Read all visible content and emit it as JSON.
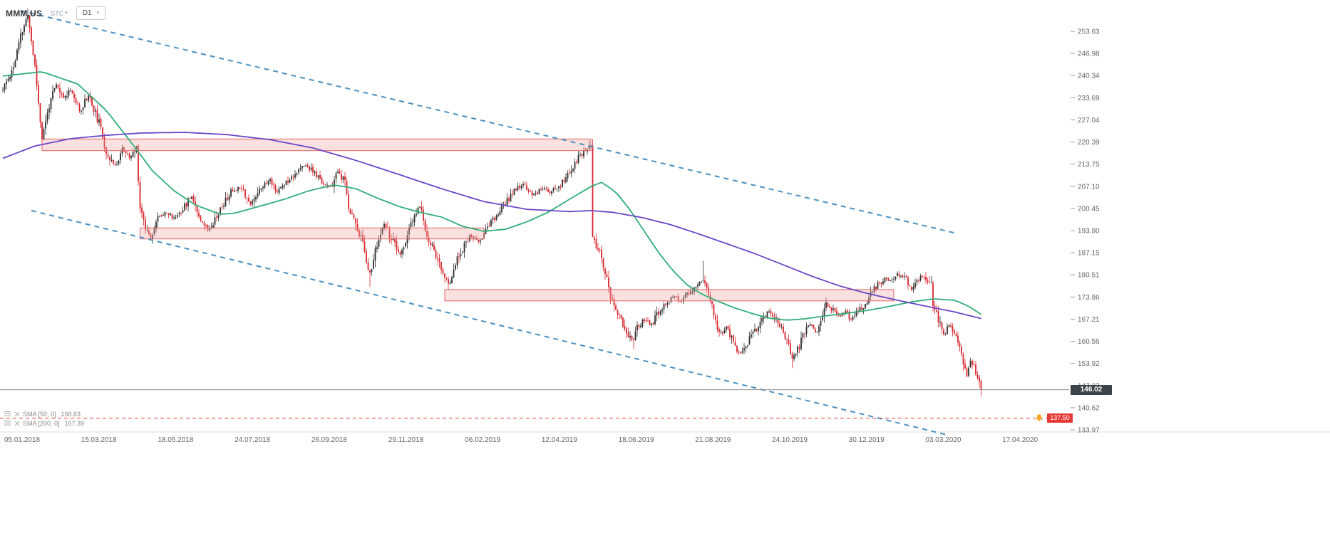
{
  "header": {
    "symbol": "MMM.US",
    "exchange_label": "STC",
    "timeframe": "D1"
  },
  "indicators": [
    {
      "label": "SMA [50, 0]",
      "value": "168.63"
    },
    {
      "label": "SMA [200, 0]",
      "value": "167.39"
    }
  ],
  "price_tag": "146.02",
  "alert_tag": "137.50",
  "colors": {
    "up_candle": "#2e2e2e",
    "down_candle": "#d8232a",
    "sma50": "#2fae77",
    "sma200": "#6a46c8",
    "trend_channel": "#4a90c2",
    "zone_fill": "#f0a8a4",
    "zone_border": "#e06666",
    "current_price_line": "#8c8c8c",
    "price_tag_bg": "#3c434b",
    "alert_line": "#e53935",
    "alert_tag_bg": "#e53935",
    "alert_bell": "#f5a623",
    "axis_text": "#666666"
  },
  "chart_data": {
    "type": "candlestick",
    "symbol": "MMM.US",
    "timeframe": "D1",
    "date_labels": [
      "05.01.2018",
      "15.03.2018",
      "18.05.2018",
      "24.07.2018",
      "26.09.2018",
      "29.11.2018",
      "06.02.2019",
      "12.04.2019",
      "18.06.2019",
      "21.08.2019",
      "24.10.2019",
      "30.12.2019",
      "03.03.2020",
      "17.04.2020"
    ],
    "price_labels": [
      "253.63",
      "246.98",
      "240.34",
      "233.69",
      "227.04",
      "220.39",
      "213.75",
      "207.10",
      "200.45",
      "193.80",
      "187.15",
      "180.51",
      "173.86",
      "167.21",
      "160.56",
      "153.92",
      "147.27",
      "140.62",
      "133.97"
    ],
    "ylim": [
      131.5,
      262.5
    ],
    "candle_count": 550,
    "current_price": 146.02,
    "alert_price": 137.5,
    "close_anchors": [
      [
        0,
        236
      ],
      [
        6,
        243
      ],
      [
        10,
        252
      ],
      [
        14,
        258.6
      ],
      [
        18,
        243
      ],
      [
        22,
        221.5
      ],
      [
        26,
        231.5
      ],
      [
        30,
        237.5
      ],
      [
        34,
        233.5
      ],
      [
        38,
        236.5
      ],
      [
        43,
        229.5
      ],
      [
        48,
        234.5
      ],
      [
        54,
        226
      ],
      [
        58,
        217.5
      ],
      [
        63,
        213
      ],
      [
        67,
        218.5
      ],
      [
        71,
        215.5
      ],
      [
        75,
        218.5
      ],
      [
        77,
        201
      ],
      [
        80,
        195
      ],
      [
        83,
        192
      ],
      [
        87,
        197.5
      ],
      [
        91,
        199.5
      ],
      [
        96,
        197.5
      ],
      [
        102,
        201
      ],
      [
        106,
        204.5
      ],
      [
        110,
        198.5
      ],
      [
        115,
        194
      ],
      [
        118,
        196.5
      ],
      [
        123,
        201
      ],
      [
        128,
        205.5
      ],
      [
        134,
        207
      ],
      [
        139,
        201.5
      ],
      [
        144,
        206.5
      ],
      [
        150,
        209
      ],
      [
        154,
        205.5
      ],
      [
        159,
        208.5
      ],
      [
        164,
        211
      ],
      [
        170,
        213.5
      ],
      [
        174,
        211.5
      ],
      [
        179,
        208.5
      ],
      [
        184,
        206.5
      ],
      [
        188,
        211.5
      ],
      [
        192,
        208
      ],
      [
        194,
        201
      ],
      [
        198,
        196
      ],
      [
        202,
        190
      ],
      [
        206,
        180.8
      ],
      [
        210,
        189.5
      ],
      [
        214,
        195.5
      ],
      [
        219,
        190.5
      ],
      [
        223,
        186
      ],
      [
        228,
        194
      ],
      [
        234,
        201.5
      ],
      [
        238,
        192
      ],
      [
        242,
        188
      ],
      [
        246,
        182
      ],
      [
        250,
        177.5
      ],
      [
        254,
        184
      ],
      [
        258,
        188.5
      ],
      [
        262,
        192
      ],
      [
        267,
        190.5
      ],
      [
        272,
        195
      ],
      [
        276,
        197.5
      ],
      [
        282,
        202
      ],
      [
        287,
        206
      ],
      [
        292,
        207.5
      ],
      [
        298,
        204.5
      ],
      [
        302,
        206.5
      ],
      [
        307,
        205.5
      ],
      [
        312,
        207
      ],
      [
        318,
        211
      ],
      [
        322,
        215
      ],
      [
        327,
        218.2
      ],
      [
        330,
        218.8
      ],
      [
        331,
        191
      ],
      [
        334,
        188
      ],
      [
        336,
        185.5
      ],
      [
        339,
        179
      ],
      [
        342,
        172
      ],
      [
        344,
        169
      ],
      [
        347,
        167.5
      ],
      [
        350,
        163.5
      ],
      [
        354,
        160.2
      ],
      [
        356,
        165
      ],
      [
        360,
        167
      ],
      [
        364,
        165.5
      ],
      [
        368,
        169.5
      ],
      [
        372,
        172
      ],
      [
        376,
        174
      ],
      [
        380,
        172.5
      ],
      [
        384,
        174.5
      ],
      [
        388,
        176.5
      ],
      [
        392,
        178.5
      ],
      [
        393,
        179.5
      ],
      [
        396,
        175.5
      ],
      [
        399,
        168.5
      ],
      [
        402,
        162.5
      ],
      [
        406,
        164.5
      ],
      [
        409,
        161.5
      ],
      [
        412,
        158.5
      ],
      [
        414,
        156.8
      ],
      [
        418,
        160
      ],
      [
        421,
        163
      ],
      [
        424,
        165.5
      ],
      [
        427,
        168
      ],
      [
        430,
        169.5
      ],
      [
        434,
        167
      ],
      [
        437,
        164.5
      ],
      [
        440,
        161
      ],
      [
        443,
        156
      ],
      [
        446,
        158
      ],
      [
        450,
        163.5
      ],
      [
        453,
        165.5
      ],
      [
        456,
        163
      ],
      [
        459,
        166
      ],
      [
        462,
        171.5
      ],
      [
        466,
        170
      ],
      [
        470,
        168
      ],
      [
        473,
        169.5
      ],
      [
        476,
        167
      ],
      [
        479,
        169.5
      ],
      [
        482,
        170.5
      ],
      [
        486,
        173.5
      ],
      [
        489,
        176.5
      ],
      [
        492,
        178
      ],
      [
        495,
        179.5
      ],
      [
        498,
        178.5
      ],
      [
        502,
        180.5
      ],
      [
        505,
        180.5
      ],
      [
        508,
        178
      ],
      [
        510,
        176
      ],
      [
        513,
        179
      ],
      [
        516,
        180
      ],
      [
        519,
        178.5
      ],
      [
        521,
        177
      ],
      [
        522,
        172
      ],
      [
        525,
        166.5
      ],
      [
        528,
        162.5
      ],
      [
        531,
        165.5
      ],
      [
        534,
        163
      ],
      [
        537,
        160
      ],
      [
        539,
        154
      ],
      [
        541,
        149.5
      ],
      [
        543,
        155.5
      ],
      [
        545,
        152.5
      ],
      [
        547,
        149
      ],
      [
        549,
        146.02
      ]
    ],
    "spikes": [
      [
        14,
        "high",
        259.8
      ],
      [
        206,
        "low",
        176.9
      ],
      [
        250,
        "low",
        176.1
      ],
      [
        330,
        "high",
        220.9
      ],
      [
        354,
        "low",
        158.3
      ],
      [
        393,
        "high",
        184.7
      ],
      [
        443,
        "low",
        152.5
      ],
      [
        549,
        "low",
        143.9
      ]
    ],
    "sma50_anchors": [
      [
        0,
        240.2
      ],
      [
        22,
        241.5
      ],
      [
        42,
        237.8
      ],
      [
        58,
        229.9
      ],
      [
        72,
        220.3
      ],
      [
        84,
        211.7
      ],
      [
        96,
        205.8
      ],
      [
        108,
        201.5
      ],
      [
        122,
        198.7
      ],
      [
        130,
        199
      ],
      [
        144,
        201.1
      ],
      [
        158,
        203.2
      ],
      [
        172,
        205.8
      ],
      [
        186,
        207.5
      ],
      [
        198,
        206.4
      ],
      [
        210,
        203.6
      ],
      [
        222,
        201.1
      ],
      [
        234,
        199.3
      ],
      [
        246,
        197.9
      ],
      [
        258,
        195.1
      ],
      [
        270,
        193.6
      ],
      [
        282,
        194.2
      ],
      [
        294,
        196.4
      ],
      [
        306,
        199.3
      ],
      [
        318,
        203.2
      ],
      [
        330,
        207
      ],
      [
        336,
        208.3
      ],
      [
        344,
        205.4
      ],
      [
        352,
        200
      ],
      [
        360,
        193.6
      ],
      [
        368,
        187.2
      ],
      [
        376,
        181.8
      ],
      [
        384,
        177.5
      ],
      [
        392,
        174.8
      ],
      [
        400,
        172.9
      ],
      [
        410,
        170.7
      ],
      [
        420,
        169
      ],
      [
        430,
        167.5
      ],
      [
        440,
        166.9
      ],
      [
        450,
        167.3
      ],
      [
        462,
        168.2
      ],
      [
        474,
        169
      ],
      [
        486,
        169.9
      ],
      [
        498,
        171.1
      ],
      [
        510,
        172.4
      ],
      [
        522,
        173.3
      ],
      [
        534,
        172.9
      ],
      [
        542,
        171.1
      ],
      [
        549,
        168.63
      ]
    ],
    "sma200_anchors": [
      [
        0,
        215.5
      ],
      [
        18,
        219.2
      ],
      [
        38,
        221.4
      ],
      [
        58,
        222.4
      ],
      [
        78,
        223.1
      ],
      [
        102,
        223.3
      ],
      [
        126,
        222.6
      ],
      [
        150,
        221.1
      ],
      [
        174,
        218.6
      ],
      [
        198,
        214.9
      ],
      [
        222,
        210.7
      ],
      [
        246,
        206.4
      ],
      [
        270,
        202.5
      ],
      [
        294,
        200.2
      ],
      [
        318,
        199.5
      ],
      [
        330,
        199.8
      ],
      [
        342,
        199.3
      ],
      [
        358,
        197.8
      ],
      [
        374,
        195.7
      ],
      [
        390,
        192.9
      ],
      [
        406,
        189.9
      ],
      [
        422,
        186.9
      ],
      [
        438,
        183.5
      ],
      [
        454,
        180.1
      ],
      [
        470,
        177.1
      ],
      [
        486,
        174.8
      ],
      [
        502,
        172.9
      ],
      [
        518,
        171.1
      ],
      [
        534,
        169.4
      ],
      [
        549,
        167.39
      ]
    ],
    "trend_channel": {
      "upper": [
        [
          10,
          259.8
        ],
        [
          535,
          193.0
        ]
      ],
      "lower": [
        [
          16,
          199.8
        ],
        [
          531,
          132.3
        ]
      ]
    },
    "zones": [
      {
        "from": 22,
        "to": 330,
        "top": 221.3,
        "bottom": 217.8
      },
      {
        "from": 77,
        "to": 270,
        "top": 194.6,
        "bottom": 191.3
      },
      {
        "from": 248,
        "to": 500,
        "top": 176.1,
        "bottom": 172.7
      }
    ],
    "noise_seed": 11,
    "close_noise": 0.6,
    "wick_noise": 1.0,
    "gap_noise": 0.5
  }
}
